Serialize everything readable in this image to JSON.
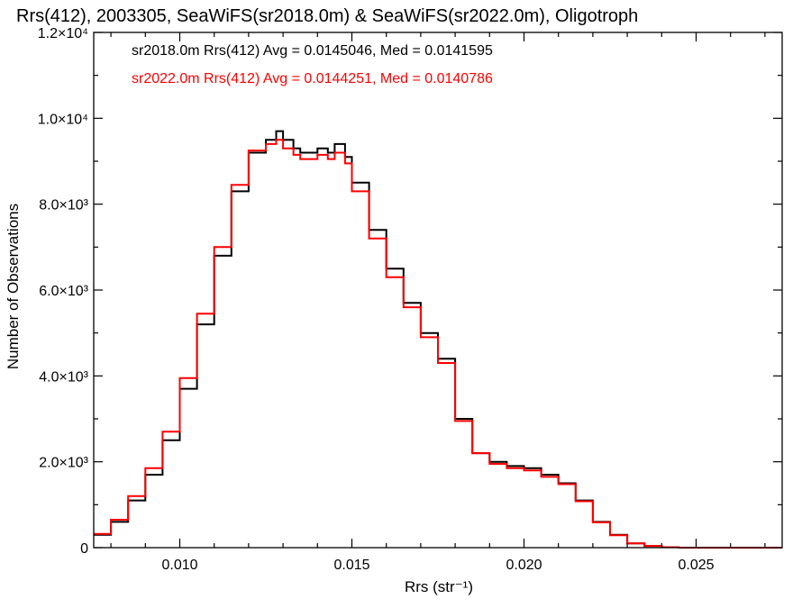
{
  "chart_data": {
    "type": "line",
    "title": "Rrs(412), 2003305, SeaWiFS(sr2018.0m) & SeaWiFS(sr2022.0m), Oligotroph",
    "xlabel": "Rrs (str⁻¹)",
    "ylabel": "Number of Observations",
    "xlim": [
      0.0075,
      0.0275
    ],
    "ylim": [
      0,
      12000
    ],
    "x_ticks": [
      {
        "value": 0.01,
        "label": "0.010"
      },
      {
        "value": 0.015,
        "label": "0.015"
      },
      {
        "value": 0.02,
        "label": "0.020"
      },
      {
        "value": 0.025,
        "label": "0.025"
      }
    ],
    "y_ticks": [
      {
        "value": 0,
        "label": "0"
      },
      {
        "value": 2000,
        "label": "2.0×10³"
      },
      {
        "value": 4000,
        "label": "4.0×10³"
      },
      {
        "value": 6000,
        "label": "6.0×10³"
      },
      {
        "value": 8000,
        "label": "8.0×10³"
      },
      {
        "value": 10000,
        "label": "1.0×10⁴"
      },
      {
        "value": 12000,
        "label": "1.2×10⁴"
      }
    ],
    "step": true,
    "series": [
      {
        "name": "sr2018.0m",
        "color": "#000000",
        "annotation": "sr2018.0m Rrs(412) Avg = 0.0145046, Med = 0.0141595",
        "x": [
          0.0075,
          0.008,
          0.0085,
          0.009,
          0.0095,
          0.01,
          0.0105,
          0.011,
          0.0115,
          0.012,
          0.0125,
          0.0128,
          0.013,
          0.0133,
          0.0135,
          0.0138,
          0.014,
          0.0143,
          0.0145,
          0.0148,
          0.015,
          0.0155,
          0.016,
          0.0165,
          0.017,
          0.0175,
          0.018,
          0.0185,
          0.019,
          0.0195,
          0.02,
          0.0205,
          0.021,
          0.0215,
          0.022,
          0.0225,
          0.023,
          0.0235,
          0.024,
          0.0245,
          0.025,
          0.026,
          0.0275
        ],
        "y": [
          300,
          600,
          1100,
          1700,
          2500,
          3700,
          5200,
          6800,
          8300,
          9200,
          9500,
          9700,
          9500,
          9300,
          9200,
          9200,
          9300,
          9200,
          9400,
          9100,
          8500,
          7400,
          6500,
          5700,
          5000,
          4400,
          3000,
          2200,
          2000,
          1900,
          1850,
          1700,
          1500,
          1100,
          600,
          300,
          100,
          40,
          10,
          0,
          0,
          0,
          0
        ]
      },
      {
        "name": "sr2022.0m",
        "color": "#ff0000",
        "annotation": "sr2022.0m Rrs(412) Avg = 0.0144251, Med = 0.0140786",
        "x": [
          0.0075,
          0.008,
          0.0085,
          0.009,
          0.0095,
          0.01,
          0.0105,
          0.011,
          0.0115,
          0.012,
          0.0125,
          0.0128,
          0.013,
          0.0133,
          0.0135,
          0.0138,
          0.014,
          0.0143,
          0.0145,
          0.0148,
          0.015,
          0.0155,
          0.016,
          0.0165,
          0.017,
          0.0175,
          0.018,
          0.0185,
          0.019,
          0.0195,
          0.02,
          0.0205,
          0.021,
          0.0215,
          0.022,
          0.0225,
          0.023,
          0.0235,
          0.024,
          0.0245,
          0.025,
          0.026,
          0.0275
        ],
        "y": [
          320,
          650,
          1200,
          1850,
          2700,
          3950,
          5450,
          7000,
          8450,
          9250,
          9400,
          9500,
          9300,
          9150,
          9050,
          9050,
          9150,
          9050,
          9200,
          8950,
          8300,
          7200,
          6300,
          5600,
          4900,
          4300,
          2950,
          2200,
          1950,
          1850,
          1800,
          1650,
          1480,
          1080,
          590,
          290,
          100,
          40,
          10,
          0,
          0,
          0,
          0
        ]
      }
    ]
  }
}
